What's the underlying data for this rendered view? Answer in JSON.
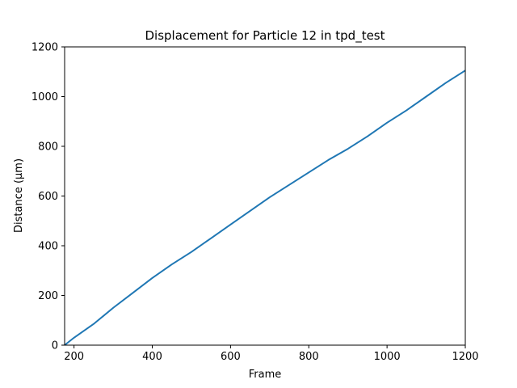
{
  "chart_data": {
    "type": "line",
    "title": "Displacement for Particle 12 in tpd_test",
    "xlabel": "Frame",
    "ylabel": "Distance (µm)",
    "xlim": [
      176,
      1200
    ],
    "ylim": [
      0,
      1200
    ],
    "xticks": [
      200,
      400,
      600,
      800,
      1000,
      1200
    ],
    "yticks": [
      0,
      200,
      400,
      600,
      800,
      1000,
      1200
    ],
    "grid": false,
    "line_color": "#1f77b4",
    "series": [
      {
        "x": [
          176,
          200,
          250,
          300,
          350,
          400,
          450,
          500,
          550,
          600,
          650,
          700,
          750,
          800,
          850,
          900,
          950,
          1000,
          1050,
          1100,
          1150,
          1200
        ],
        "y": [
          0,
          30,
          85,
          150,
          210,
          270,
          325,
          375,
          430,
          485,
          540,
          595,
          645,
          695,
          745,
          790,
          840,
          895,
          945,
          1000,
          1055,
          1105
        ]
      }
    ]
  }
}
